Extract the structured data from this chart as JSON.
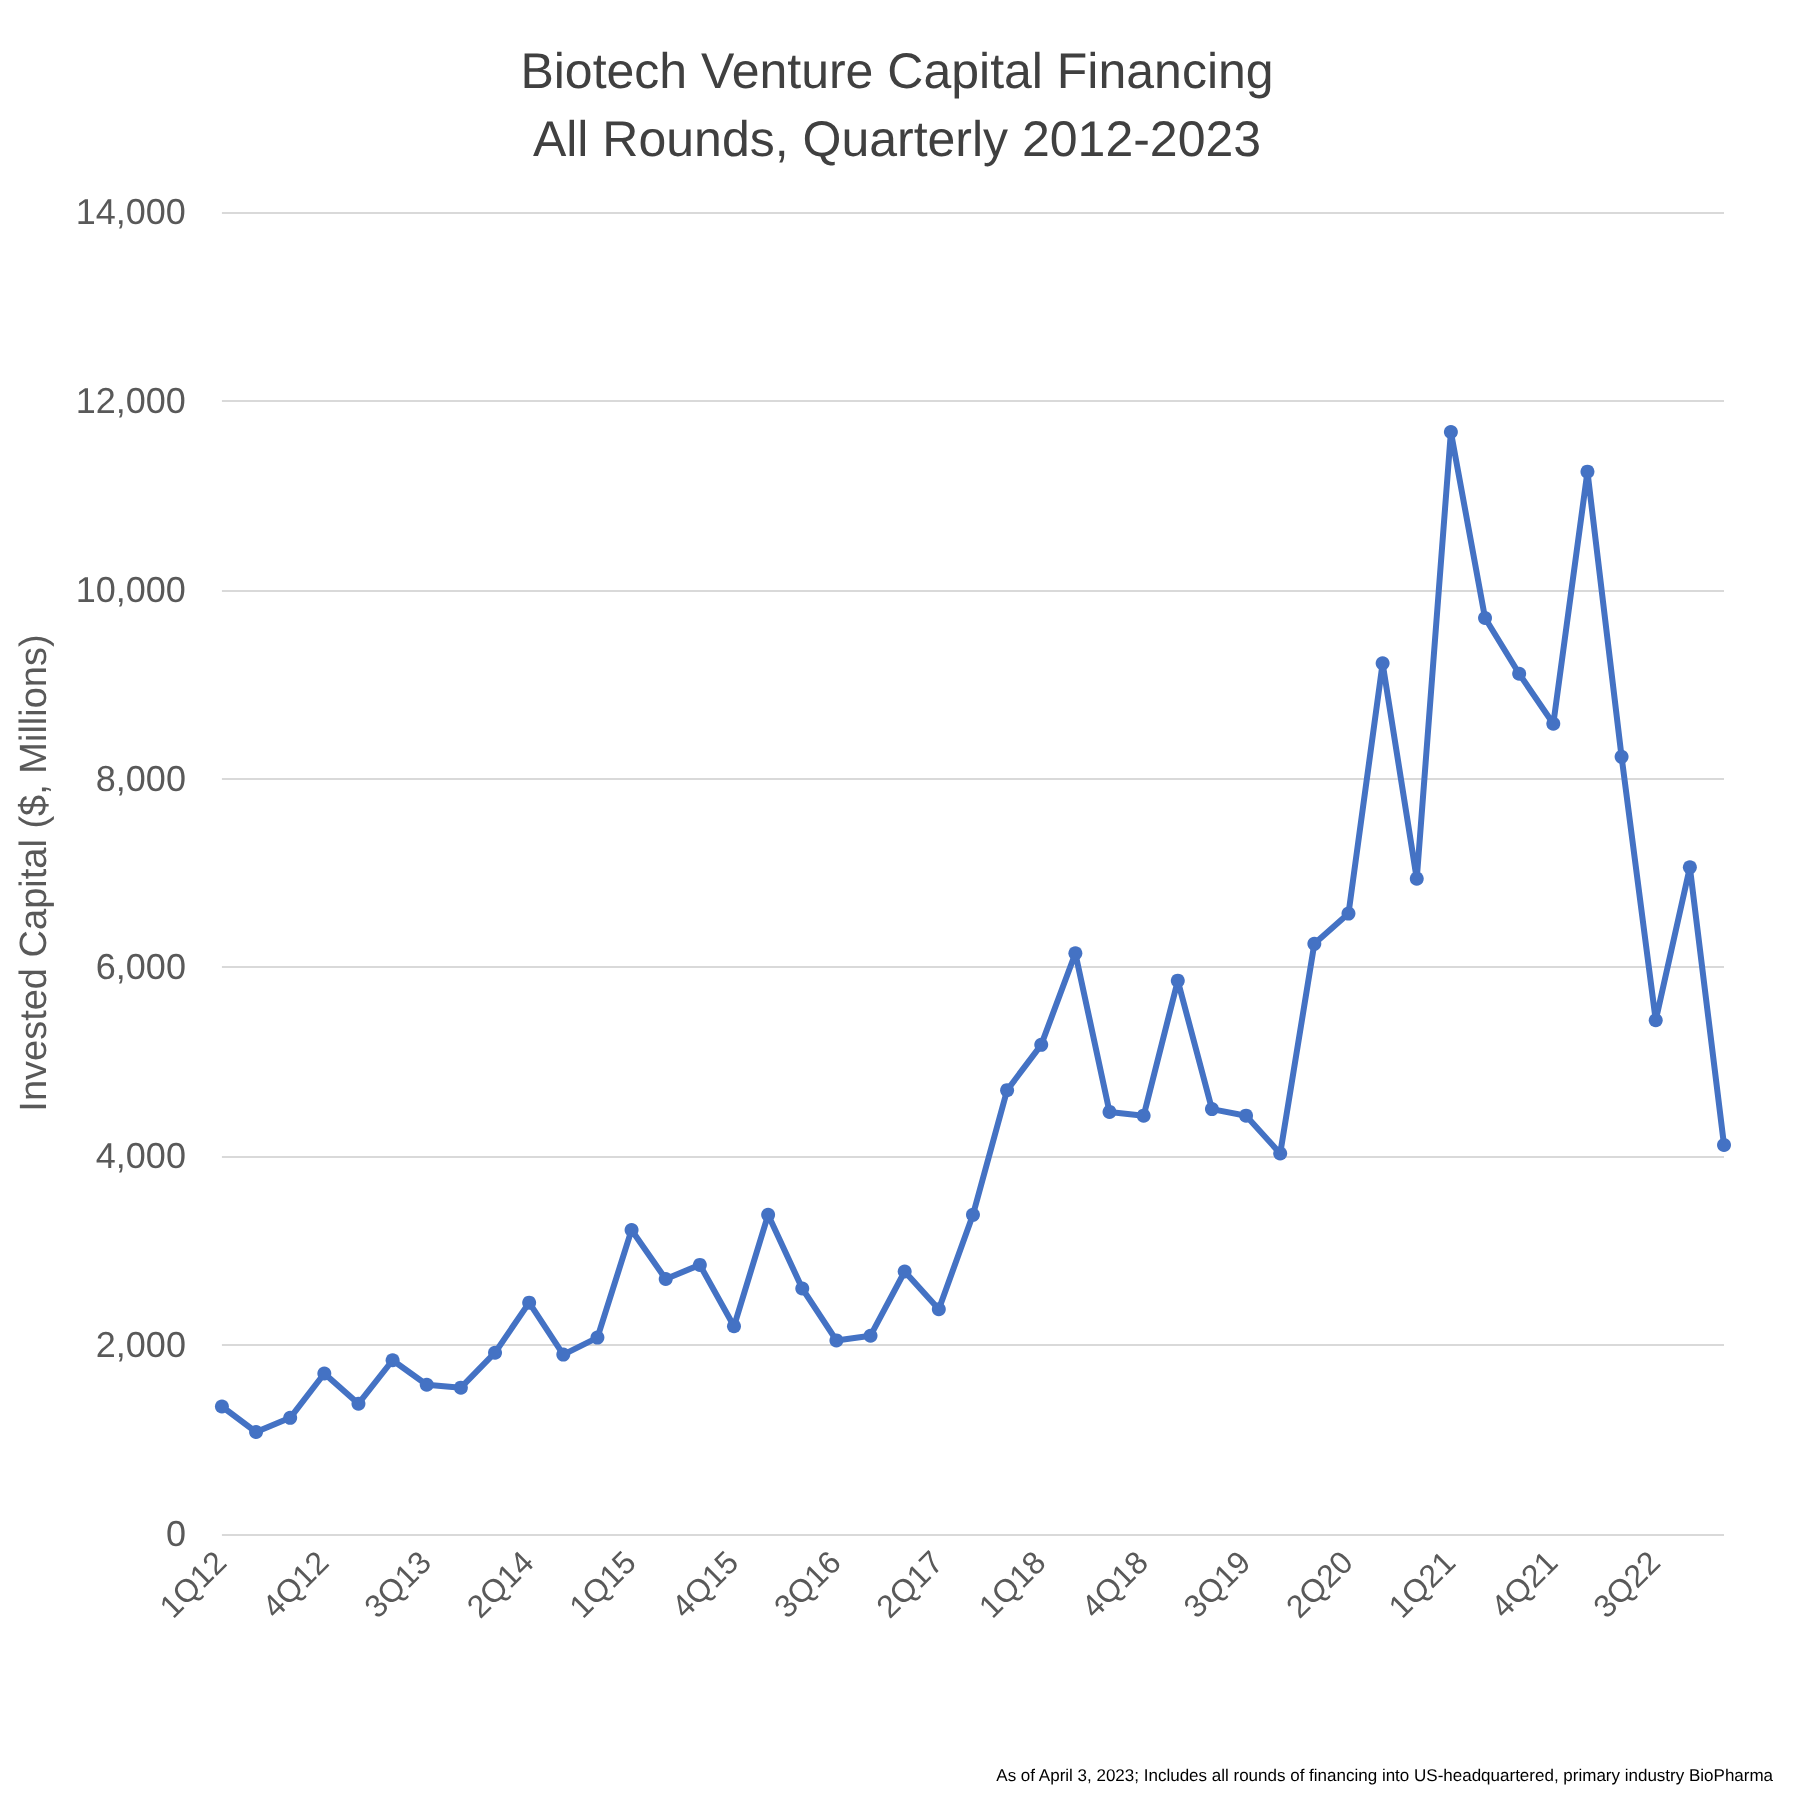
{
  "chart_data": {
    "type": "line",
    "title": "Biotech Venture Capital Financing\nAll Rounds, Quarterly 2012-2023",
    "ylabel": "Invested Capital ($, Millions)",
    "categories": [
      "1Q12",
      null,
      null,
      "4Q12",
      null,
      null,
      "3Q13",
      null,
      null,
      "2Q14",
      null,
      null,
      "1Q15",
      null,
      null,
      "4Q15",
      null,
      null,
      "3Q16",
      null,
      null,
      "2Q17",
      null,
      null,
      "1Q18",
      null,
      null,
      "4Q18",
      null,
      null,
      "3Q19",
      null,
      null,
      "2Q20",
      null,
      null,
      "1Q21",
      null,
      null,
      "4Q21",
      null,
      null,
      "3Q22",
      null,
      null
    ],
    "series": [
      {
        "color": "#4472c4",
        "values": [
          1350,
          1080,
          1230,
          1700,
          1380,
          1840,
          1580,
          1550,
          1920,
          2450,
          1900,
          2080,
          3220,
          2700,
          2850,
          2200,
          3380,
          2600,
          2050,
          2100,
          2780,
          2380,
          3380,
          4700,
          5180,
          6150,
          4470,
          4430,
          5860,
          4500,
          4430,
          4030,
          6250,
          6570,
          9220,
          6940,
          11670,
          9700,
          9110,
          8580,
          11250,
          8230,
          5440,
          7060,
          4120
        ]
      }
    ],
    "ylim": [
      0,
      14000
    ],
    "yticks": [
      0,
      {
        "value": 2000,
        "label": "2,000"
      },
      {
        "value": 4000,
        "label": "4,000"
      },
      {
        "value": 6000,
        "label": "6,000"
      },
      {
        "value": 8000,
        "label": "8,000"
      },
      {
        "value": 10000,
        "label": "10,000"
      },
      {
        "value": 12000,
        "label": "12,000"
      },
      {
        "value": 14000,
        "label": "14,000"
      }
    ],
    "grid": "y",
    "marker": "circle",
    "line_style": "solid",
    "annotations": [
      "As of April 3, 2023; Includes all rounds of financing into US-headquartered, primary industry BioPharma"
    ]
  }
}
